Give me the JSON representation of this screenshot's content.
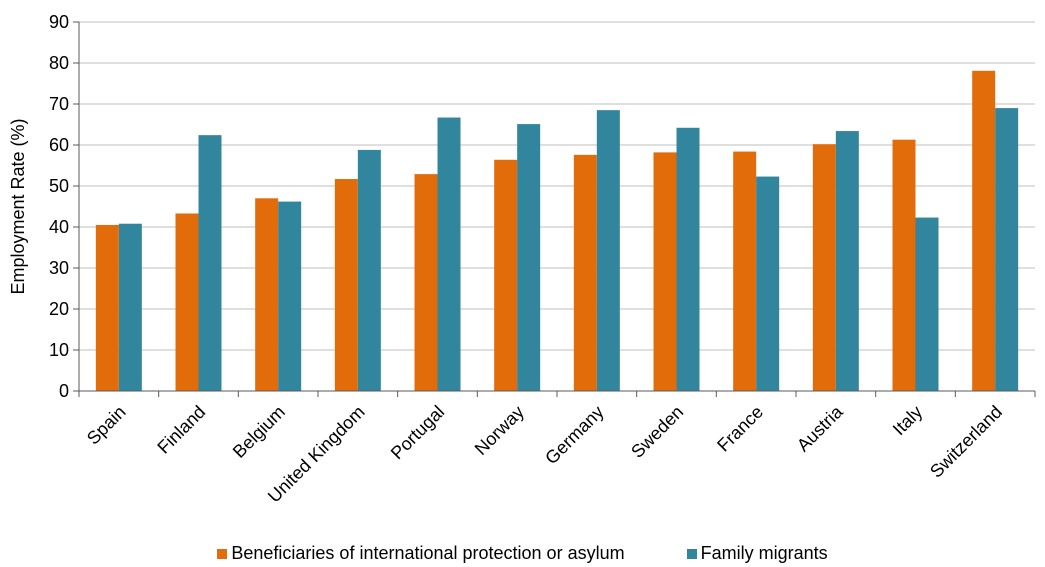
{
  "chart_data": {
    "type": "bar",
    "ylabel": "Employment Rate (%)",
    "xlabel": "",
    "ylim": [
      0,
      90
    ],
    "yticks": [
      0,
      10,
      20,
      30,
      40,
      50,
      60,
      70,
      80,
      90
    ],
    "grid": true,
    "legend_position": "bottom",
    "categories": [
      "Spain",
      "Finland",
      "Belgium",
      "United Kingdom",
      "Portugal",
      "Norway",
      "Germany",
      "Sweden",
      "France",
      "Austria",
      "Italy",
      "Switzerland"
    ],
    "series": [
      {
        "name": "Beneficiaries of international protection or asylum",
        "color": "#e36c0a",
        "values": [
          40.5,
          43.3,
          47.0,
          51.7,
          52.9,
          56.4,
          57.6,
          58.2,
          58.4,
          60.2,
          61.3,
          78.1
        ]
      },
      {
        "name": "Family migrants",
        "color": "#31859c",
        "values": [
          40.8,
          62.4,
          46.2,
          58.8,
          66.7,
          65.1,
          68.5,
          64.2,
          52.3,
          63.4,
          42.3,
          69.0
        ]
      }
    ]
  }
}
